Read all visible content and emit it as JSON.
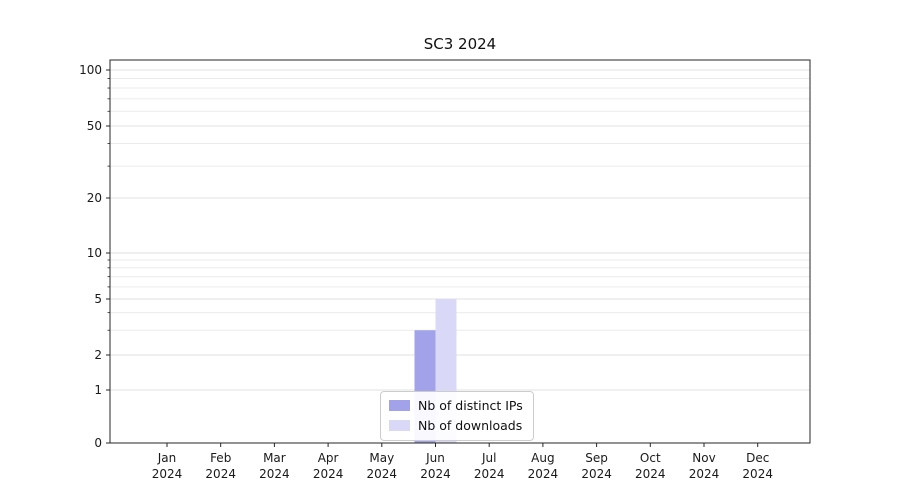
{
  "chart_data": {
    "type": "bar",
    "title": "SC3 2024",
    "year": "2024",
    "months": [
      "Jan",
      "Feb",
      "Mar",
      "Apr",
      "May",
      "Jun",
      "Jul",
      "Aug",
      "Sep",
      "Oct",
      "Nov",
      "Dec"
    ],
    "series": [
      {
        "name": "Nb of distinct IPs",
        "color": "#a2a2ea",
        "values": [
          0,
          0,
          0,
          0,
          0,
          3,
          0,
          0,
          0,
          0,
          0,
          0
        ]
      },
      {
        "name": "Nb of downloads",
        "color": "#d9d9f7",
        "values": [
          0,
          0,
          0,
          0,
          0,
          5,
          0,
          0,
          0,
          0,
          0,
          0
        ]
      }
    ],
    "yscale": "symlog",
    "ylim": [
      0,
      110
    ],
    "y_ticks": [
      0,
      1,
      2,
      5,
      10,
      20,
      50,
      100
    ],
    "y_minor_ticks": [
      3,
      4,
      6,
      7,
      8,
      9,
      30,
      40,
      60,
      70,
      80,
      90
    ],
    "grid": "horizontal",
    "legend_position": "lower-center"
  }
}
